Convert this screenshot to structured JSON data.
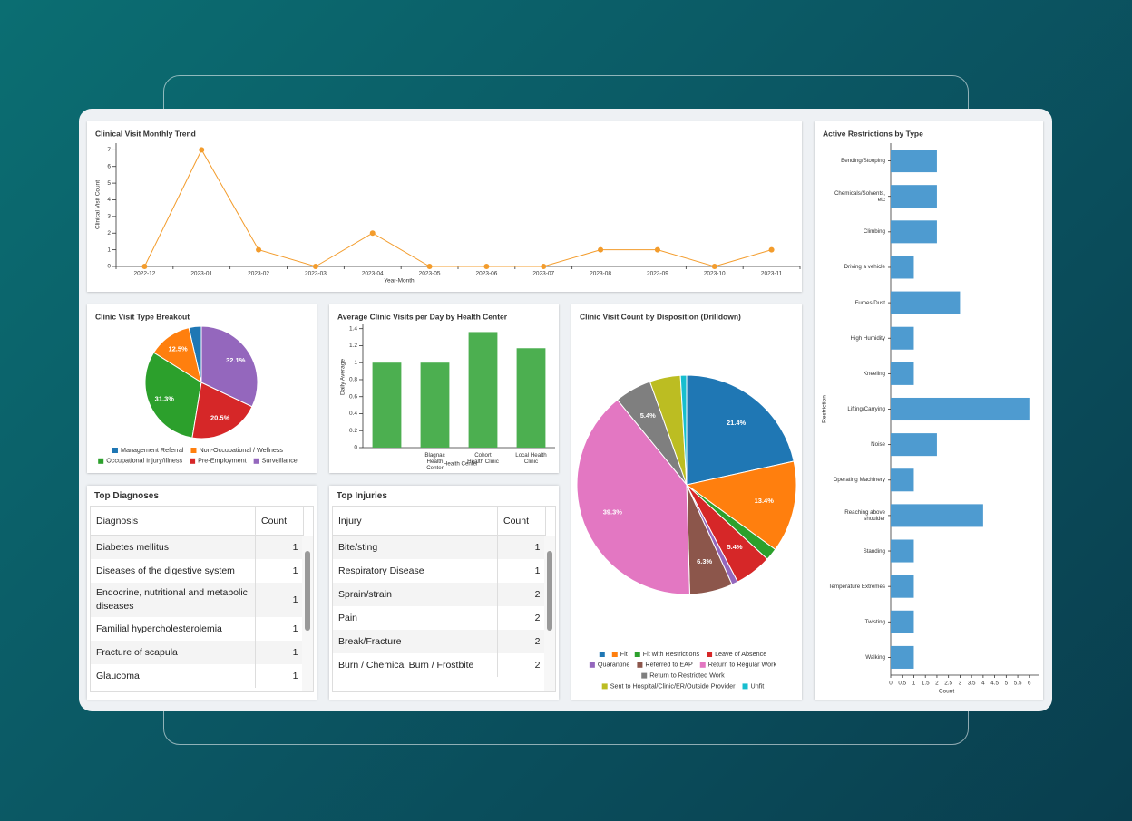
{
  "chart_data": [
    {
      "type": "line",
      "title": "Clinical Visit Monthly Trend",
      "x_label": "Year-Month",
      "y_label": "Clinical Visit Count",
      "categories": [
        "2022-12",
        "2023-01",
        "2023-02",
        "2023-03",
        "2023-04",
        "2023-05",
        "2023-06",
        "2023-07",
        "2023-08",
        "2023-09",
        "2023-10",
        "2023-11"
      ],
      "values": [
        0,
        7,
        1,
        0,
        2,
        0,
        0,
        0,
        1,
        1,
        0,
        1
      ],
      "color": "#f39c2c",
      "ylim": [
        0,
        7.4
      ],
      "yticks": [
        0,
        1,
        2,
        3,
        4,
        5,
        6,
        7
      ]
    },
    {
      "type": "pie",
      "title": "Clinic Visit Type Breakout",
      "direction": "counterclockwise",
      "legend": "bottom",
      "categories": [
        "Management Referral",
        "Non-Occupational / Wellness",
        "Occupational Injury/Illness",
        "Pre-Employment",
        "Surveillance"
      ],
      "values": [
        3.6,
        12.5,
        31.3,
        20.5,
        32.1
      ],
      "value_labels": [
        null,
        "12.5%",
        "31.3%",
        "20.5%",
        "32.1%"
      ],
      "colors": [
        "#1f77b4",
        "#ff7f0e",
        "#2ca02c",
        "#d62728",
        "#9467bd"
      ]
    },
    {
      "type": "bar",
      "title": "Average Clinic Visits per Day by Health Center",
      "x_label": "Health Center",
      "y_label": "Daily Average",
      "categories": [
        null,
        "Blagnac Health Center",
        "Cohort Health Clinic",
        "Local Health Clinic"
      ],
      "values": [
        1,
        1,
        1.36,
        1.17
      ],
      "color": "#4caf50",
      "ylim": [
        0,
        1.45
      ],
      "yticks": [
        0,
        0.2,
        0.4,
        0.6,
        0.8,
        1,
        1.2,
        1.4
      ]
    },
    {
      "type": "pie",
      "title": "Clinic Visit Count by Disposition (Drilldown)",
      "direction": "clockwise",
      "legend": "bottom",
      "categories": [
        null,
        "Fit",
        "Fit with Restrictions",
        "Leave of Absence",
        "Quarantine",
        "Referred to EAP",
        "Return to Regular Work",
        "Return to Restricted Work",
        "Sent to Hospital/Clinic/ER/Outside Provider",
        "Unfit"
      ],
      "values": [
        21.4,
        13.4,
        1.8,
        5.4,
        0.9,
        6.3,
        39.3,
        5.4,
        4.5,
        0.9
      ],
      "value_labels": [
        "21.4%",
        "13.4%",
        null,
        "5.4%",
        null,
        "6.3%",
        "39.3%",
        "5.4%",
        null,
        null
      ],
      "colors": [
        "#1f77b4",
        "#ff7f0e",
        "#2ca02c",
        "#d62728",
        "#9467bd",
        "#8c564b",
        "#e377c2",
        "#7f7f7f",
        "#bcbd22",
        "#17becf"
      ]
    },
    {
      "type": "hbar",
      "title": "Active Restrictions by Type",
      "x_label": "Count",
      "y_label": "Restriction",
      "categories": [
        "Bending/Stooping",
        "Chemicals/Solvents, etc",
        "Climbing",
        "Driving a vehicle",
        "Fumes/Dust",
        "High Humidity",
        "Kneeling",
        "Lifting/Carrying",
        "Noise",
        "Operating Machinery",
        "Reaching above shoulder",
        "Standing",
        "Temperature Extremes",
        "Twisting",
        "Walking"
      ],
      "values": [
        2,
        2,
        2,
        1,
        3,
        1,
        1,
        6,
        2,
        1,
        4,
        1,
        1,
        1,
        1
      ],
      "color": "#4e9bd0",
      "xlim": [
        0,
        6.4
      ],
      "xticks": [
        0,
        0.5,
        1,
        1.5,
        2,
        2.5,
        3,
        3.5,
        4,
        4.5,
        5,
        5.5,
        6
      ]
    }
  ],
  "tables": [
    {
      "title": "Top Diagnoses",
      "columns": [
        "Diagnosis",
        "Count"
      ],
      "rows": [
        [
          "Diabetes mellitus",
          1
        ],
        [
          "Diseases of the digestive system",
          1
        ],
        [
          "Endocrine, nutritional and metabolic diseases",
          1
        ],
        [
          "Familial hypercholesterolemia",
          1
        ],
        [
          "Fracture of scapula",
          1
        ],
        [
          "Glaucoma",
          1
        ]
      ]
    },
    {
      "title": "Top Injuries",
      "columns": [
        "Injury",
        "Count"
      ],
      "rows": [
        [
          "Bite/sting",
          1
        ],
        [
          "Respiratory Disease",
          1
        ],
        [
          "Sprain/strain",
          2
        ],
        [
          "Pain",
          2
        ],
        [
          "Break/Fracture",
          2
        ],
        [
          "Burn / Chemical Burn / Frostbite",
          2
        ]
      ]
    }
  ]
}
